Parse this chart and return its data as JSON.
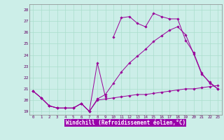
{
  "xlabel": "Windchill (Refroidissement éolien,°C)",
  "bg_color": "#cceee8",
  "grid_color": "#aaddcc",
  "line_color": "#990099",
  "label_bg": "#9900aa",
  "label_fg": "#ffffff",
  "hours": [
    0,
    1,
    2,
    3,
    4,
    5,
    6,
    7,
    8,
    9,
    10,
    11,
    12,
    13,
    14,
    15,
    16,
    17,
    18,
    19,
    20,
    21,
    22,
    23
  ],
  "ylim": [
    18.7,
    28.5
  ],
  "xlim": [
    -0.5,
    23.5
  ],
  "yticks": [
    19,
    20,
    21,
    22,
    23,
    24,
    25,
    26,
    27,
    28
  ],
  "series": [
    [
      20.8,
      20.2,
      19.5,
      19.3,
      19.3,
      19.3,
      19.7,
      19.0,
      23.3,
      20.3,
      null,
      null,
      null,
      null,
      null,
      null,
      null,
      null,
      null,
      null,
      null,
      null,
      null,
      null
    ],
    [
      null,
      null,
      null,
      null,
      null,
      null,
      null,
      null,
      null,
      null,
      25.6,
      27.3,
      27.4,
      26.8,
      26.5,
      27.7,
      27.4,
      27.2,
      27.2,
      25.3,
      24.2,
      22.4,
      21.5,
      21.0
    ],
    [
      20.8,
      20.2,
      19.5,
      19.3,
      19.3,
      19.3,
      19.7,
      19.0,
      20.0,
      20.1,
      20.2,
      20.3,
      20.4,
      20.5,
      20.5,
      20.6,
      20.7,
      20.8,
      20.9,
      21.0,
      21.0,
      21.1,
      21.2,
      21.3
    ],
    [
      20.8,
      20.2,
      19.5,
      19.3,
      19.3,
      19.3,
      19.7,
      19.0,
      20.1,
      20.5,
      21.5,
      22.5,
      23.3,
      23.9,
      24.5,
      25.2,
      25.7,
      26.2,
      26.5,
      25.8,
      24.1,
      22.3,
      21.6,
      21.0
    ]
  ]
}
